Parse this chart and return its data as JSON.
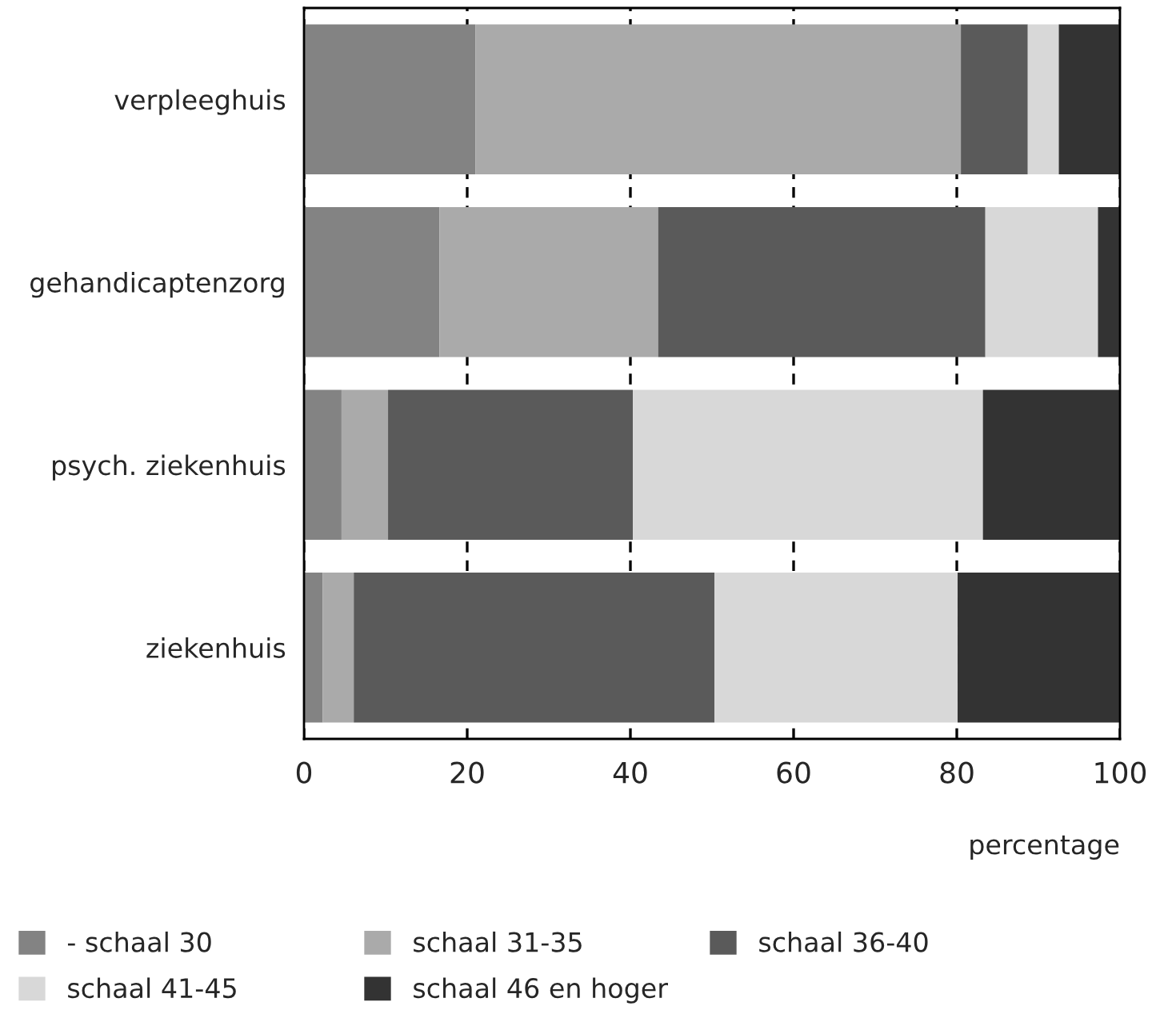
{
  "chart_data": {
    "type": "bar",
    "orientation": "horizontal",
    "stacked": true,
    "xlabel": "percentage",
    "categories": [
      "verpleeghuis",
      "gehandicaptenzorg",
      "psych. ziekenhuis",
      "ziekenhuis"
    ],
    "series": [
      {
        "name": "- schaal 30",
        "color": "#838383",
        "values": [
          21,
          16.6,
          4.6,
          2.3
        ]
      },
      {
        "name": "schaal 31-35",
        "color": "#aaaaaa",
        "values": [
          59.5,
          26.8,
          5.7,
          3.8
        ]
      },
      {
        "name": "schaal 36-40",
        "color": "#5a5a5a",
        "values": [
          8.2,
          40.1,
          30,
          44.2
        ]
      },
      {
        "name": "schaal 41-45",
        "color": "#d8d8d8",
        "values": [
          3.8,
          13.8,
          42.9,
          29.8
        ]
      },
      {
        "name": "schaal 46 en hoger",
        "color": "#333333",
        "values": [
          7.5,
          2.7,
          16.8,
          19.9
        ]
      }
    ],
    "xlim": [
      0,
      100
    ],
    "xticks": [
      0,
      20,
      40,
      60,
      80,
      100
    ],
    "grid": "x",
    "legend": "bottom"
  }
}
